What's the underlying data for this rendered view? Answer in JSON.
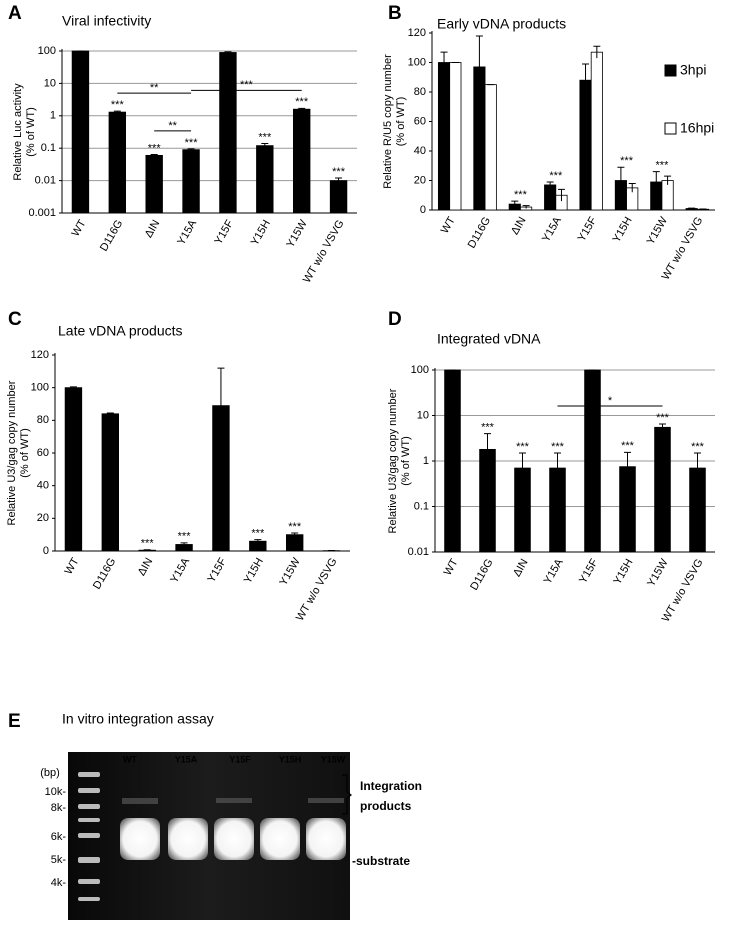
{
  "chart_data": [
    {
      "type": "bar",
      "panel": "A",
      "title": "Viral infectivity",
      "ylabel": [
        "Relative Luc activity",
        "(% of WT)"
      ],
      "yscale": "log",
      "ylim": [
        0.001,
        100
      ],
      "yticks": [
        0.001,
        0.01,
        0.1,
        1,
        10,
        100
      ],
      "grid": true,
      "color": "#000000",
      "categories": [
        "WT",
        "D116G",
        "ΔIN",
        "Y15A",
        "Y15F",
        "Y15H",
        "Y15W",
        "WT w/o VSVG"
      ],
      "values": [
        100,
        1.3,
        0.06,
        0.09,
        90,
        0.12,
        1.6,
        0.01
      ],
      "errors": [
        5,
        0.1,
        0.004,
        0.005,
        4,
        0.02,
        0.1,
        0.002
      ],
      "significance": [
        null,
        "***",
        "***",
        "***",
        null,
        "***",
        "***",
        "***"
      ],
      "brackets": [
        {
          "label": "**",
          "between": [
            "D116G",
            "Y15A"
          ]
        },
        {
          "label": "**",
          "between": [
            "ΔIN",
            "Y15A"
          ]
        },
        {
          "label": "***",
          "between": [
            "Y15A",
            "Y15W"
          ]
        }
      ]
    },
    {
      "type": "bar",
      "panel": "B",
      "title": "Early vDNA products",
      "ylabel": [
        "Relative R/U5  copy number",
        "(% of WT)"
      ],
      "ylim": [
        0,
        120
      ],
      "yticks": [
        0,
        20,
        40,
        60,
        80,
        100,
        120
      ],
      "grid": false,
      "legend": "upper right",
      "categories": [
        "WT",
        "D116G",
        "ΔIN",
        "Y15A",
        "Y15F",
        "Y15H",
        "Y15W",
        "WT w/o VSVG"
      ],
      "series": [
        {
          "name": "3hpi",
          "color": "#000000",
          "values": [
            100,
            97,
            4,
            17,
            88,
            20,
            19,
            1
          ],
          "errors": [
            7,
            21,
            2,
            2,
            11,
            9,
            7,
            0.3
          ]
        },
        {
          "name": "16hpi",
          "color": "#ffffff",
          "values": [
            100,
            85,
            2,
            10,
            107,
            15,
            20,
            0.5
          ],
          "errors": [
            0,
            0,
            1,
            4,
            4,
            3,
            3,
            0.2
          ]
        }
      ],
      "significance": [
        null,
        null,
        "***",
        "***",
        null,
        "***",
        "***",
        null
      ]
    },
    {
      "type": "bar",
      "panel": "C",
      "title": "Late  vDNA products",
      "ylabel": [
        "Relative U3/gag  copy number",
        "(% of WT)"
      ],
      "ylim": [
        0,
        120
      ],
      "yticks": [
        0,
        20,
        40,
        60,
        80,
        100,
        120
      ],
      "grid": false,
      "color": "#000000",
      "categories": [
        "WT",
        "D116G",
        "ΔIN",
        "Y15A",
        "Y15F",
        "Y15H",
        "Y15W",
        "WT w/o VSVG"
      ],
      "values": [
        100,
        84,
        0.5,
        4,
        89,
        6,
        10,
        0.2
      ],
      "errors": [
        0.5,
        0.5,
        0.3,
        1,
        23,
        1,
        1,
        0.1
      ],
      "significance": [
        null,
        null,
        "***",
        "***",
        null,
        "***",
        "***",
        null
      ]
    },
    {
      "type": "bar",
      "panel": "D",
      "title": "Integrated vDNA",
      "ylabel": [
        "Relative U3/gag  copy number",
        "(% of WT)"
      ],
      "yscale": "log",
      "ylim": [
        0.01,
        100
      ],
      "yticks": [
        0.01,
        0.1,
        1,
        10,
        100
      ],
      "grid": true,
      "color": "#000000",
      "categories": [
        "WT",
        "D116G",
        "ΔIN",
        "Y15A",
        "Y15F",
        "Y15H",
        "Y15W",
        "WT w/o VSVG"
      ],
      "values": [
        100,
        1.8,
        0.7,
        0.7,
        110,
        0.75,
        5.5,
        0.7
      ],
      "errors": [
        0.5,
        2.2,
        0.8,
        0.8,
        10,
        0.8,
        1,
        0.8
      ],
      "significance": [
        null,
        "***",
        "***",
        "***",
        null,
        "***",
        "***",
        "***"
      ],
      "brackets": [
        {
          "label": "*",
          "between": [
            "Y15A",
            "Y15W"
          ]
        }
      ]
    }
  ],
  "gel": {
    "panel": "E",
    "title": "In vitro integration assay",
    "lanes": [
      "WT",
      "Y15A",
      "Y15F",
      "Y15H",
      "Y15W"
    ],
    "unit": "(bp)",
    "ladder": [
      "10k-",
      "8k-",
      "6k-",
      "5k-",
      "4k-"
    ],
    "products": [
      "Integration",
      "products"
    ],
    "substrate": "-substrate"
  }
}
